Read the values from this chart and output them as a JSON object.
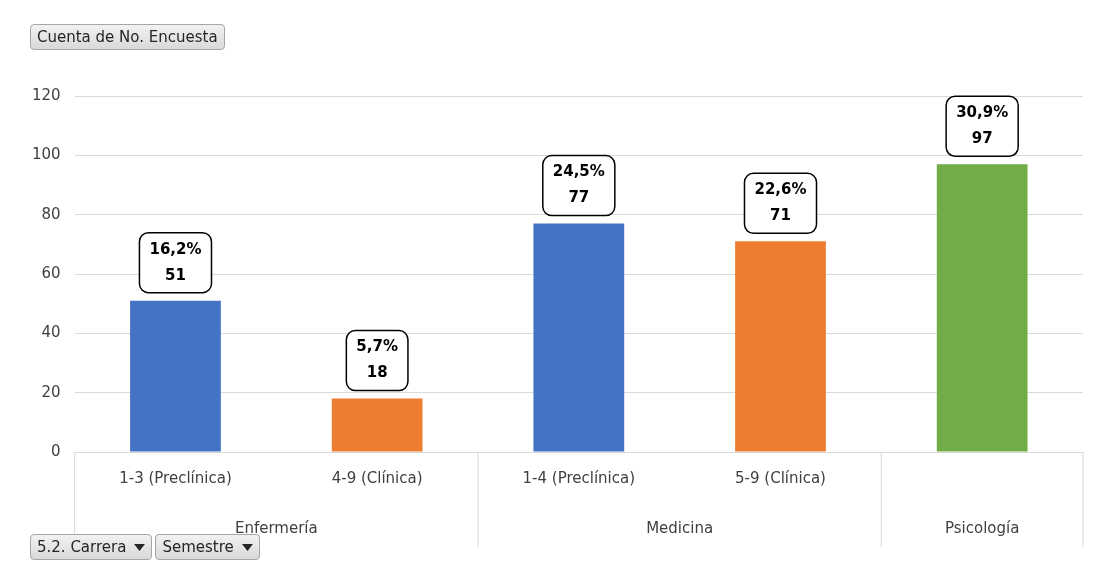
{
  "chart_data": {
    "type": "bar",
    "title": "Cuenta de No. Encuesta",
    "categories": [
      "1-3 (Preclínica)",
      "4-9 (Clínica)",
      "1-4 (Preclínica)",
      "5-9 (Clínica)",
      null
    ],
    "values": [
      51,
      18,
      77,
      71,
      97
    ],
    "colors": [
      "#4472c4",
      "#ed7d31",
      "#4472c4",
      "#ed7d31",
      "#70ad47"
    ],
    "value_labels": [
      "16,2%\n51",
      "5,7%\n18",
      "24,5%\n77",
      "22,6%\n71",
      "30,9%\n97"
    ],
    "ylim": [
      0,
      120
    ],
    "yticks": [
      0,
      20,
      40,
      60,
      80,
      100,
      120
    ],
    "grid": "y",
    "legend": false,
    "annotations": [
      "Enfermería",
      "Medicina",
      "Psicología",
      "5.2. Carrera",
      "Semestre"
    ]
  }
}
